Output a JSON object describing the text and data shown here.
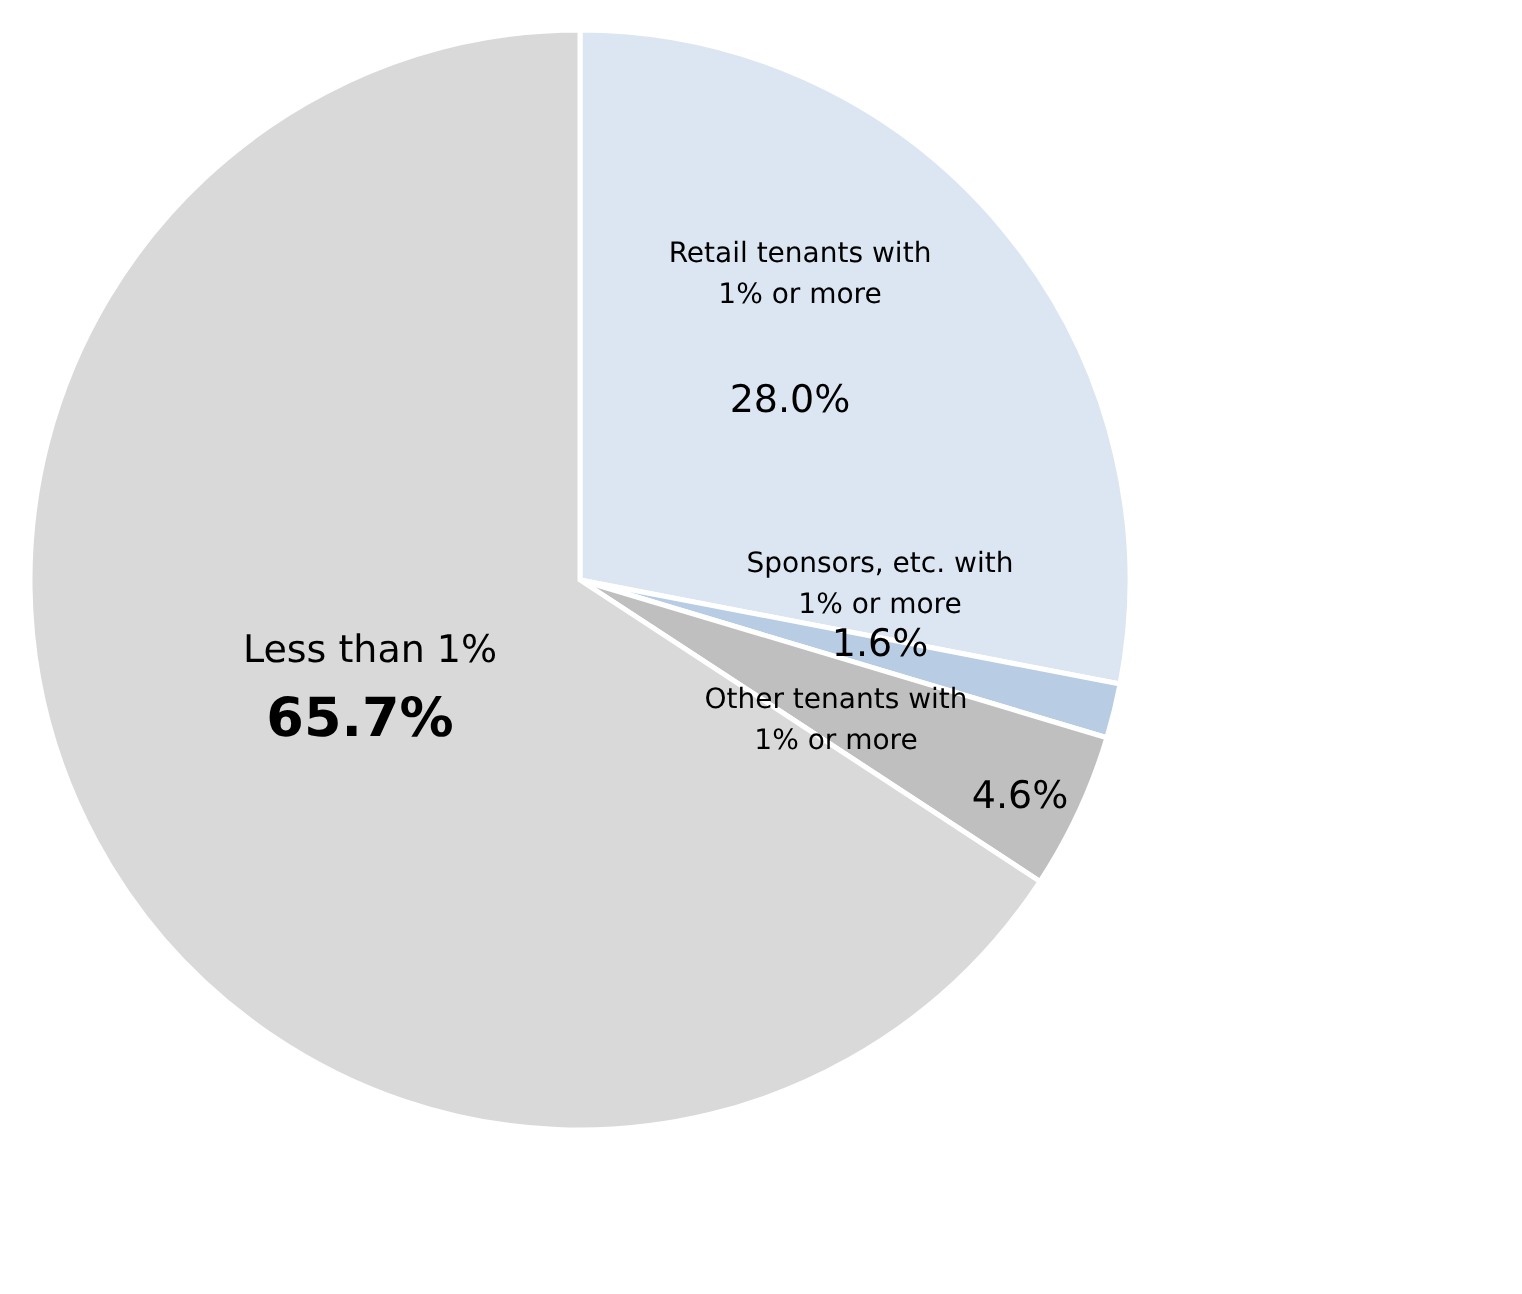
{
  "chart_data": {
    "type": "pie",
    "categories": [
      "Retail tenants with 1% or more",
      "Sponsors, etc. with 1% or more",
      "Other tenants with 1% or more",
      "Less than 1%"
    ],
    "values": [
      28.0,
      1.6,
      4.6,
      65.7
    ],
    "value_labels": [
      "28.0%",
      "1.6%",
      "4.6%",
      "65.7%"
    ],
    "colors": [
      "#dce6f2",
      "#b8cce4",
      "#bfbfbf",
      "#d9d9d9"
    ]
  }
}
